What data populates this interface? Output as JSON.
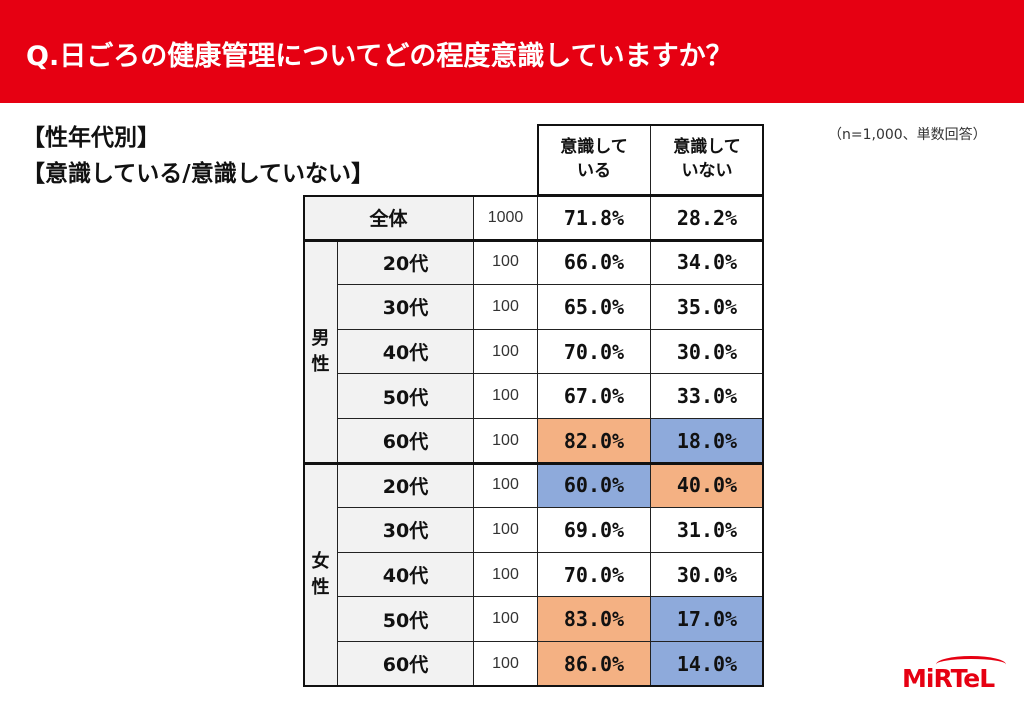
{
  "title": "Q.日ごろの健康管理についてどの程度意識していますか？",
  "subtitle_lines": [
    "【性年代別】",
    "【意識している/意識していない】"
  ],
  "note": "（n=1,000、単数回答）",
  "logo_text": "MiRTeL",
  "colors": {
    "banner": "#e60012",
    "highlight_high": "#f4b183",
    "highlight_low": "#8eaadb"
  },
  "table": {
    "columns": [
      "意識して\nいる",
      "意識して\nいない"
    ],
    "total": {
      "label": "全体",
      "n": "1000",
      "values": [
        "71.8%",
        "28.2%"
      ]
    },
    "groups": [
      {
        "label": "男\n性",
        "rows": [
          {
            "age": "20代",
            "n": "100",
            "values": [
              "66.0%",
              "34.0%"
            ],
            "highlight": [
              "",
              ""
            ]
          },
          {
            "age": "30代",
            "n": "100",
            "values": [
              "65.0%",
              "35.0%"
            ],
            "highlight": [
              "",
              ""
            ]
          },
          {
            "age": "40代",
            "n": "100",
            "values": [
              "70.0%",
              "30.0%"
            ],
            "highlight": [
              "",
              ""
            ]
          },
          {
            "age": "50代",
            "n": "100",
            "values": [
              "67.0%",
              "33.0%"
            ],
            "highlight": [
              "",
              ""
            ]
          },
          {
            "age": "60代",
            "n": "100",
            "values": [
              "82.0%",
              "18.0%"
            ],
            "highlight": [
              "hi",
              "lo"
            ]
          }
        ]
      },
      {
        "label": "女\n性",
        "rows": [
          {
            "age": "20代",
            "n": "100",
            "values": [
              "60.0%",
              "40.0%"
            ],
            "highlight": [
              "lo",
              "hi"
            ]
          },
          {
            "age": "30代",
            "n": "100",
            "values": [
              "69.0%",
              "31.0%"
            ],
            "highlight": [
              "",
              ""
            ]
          },
          {
            "age": "40代",
            "n": "100",
            "values": [
              "70.0%",
              "30.0%"
            ],
            "highlight": [
              "",
              ""
            ]
          },
          {
            "age": "50代",
            "n": "100",
            "values": [
              "83.0%",
              "17.0%"
            ],
            "highlight": [
              "hi",
              "lo"
            ]
          },
          {
            "age": "60代",
            "n": "100",
            "values": [
              "86.0%",
              "14.0%"
            ],
            "highlight": [
              "hi",
              "lo"
            ]
          }
        ]
      }
    ]
  }
}
